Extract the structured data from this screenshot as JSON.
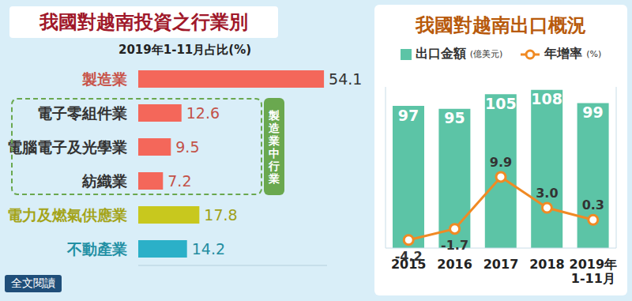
{
  "link_text": "全文閱讀",
  "chart_data": [
    {
      "type": "bar",
      "orientation": "horizontal",
      "title": "我國對越南投資之行業別",
      "subtitle": "2019年1-11月占比(%)",
      "categories": [
        "製造業",
        "電子零組件業",
        "電腦電子及光學業",
        "紡織業",
        "電力及燃氣供應業",
        "不動產業"
      ],
      "values": [
        54.1,
        12.6,
        9.5,
        7.2,
        17.8,
        14.2
      ],
      "colors": [
        "#f4675a",
        "#f4675a",
        "#f4675a",
        "#f4675a",
        "#c8c81e",
        "#2bb0c8"
      ],
      "xlim": [
        0,
        55
      ],
      "data_labels": true,
      "tick_labels": "y",
      "grid": false,
      "annotations": [
        {
          "text": "製造業中行業",
          "categories": [
            "電子零組件業",
            "電腦電子及光學業",
            "紡織業"
          ]
        }
      ]
    },
    {
      "type": "bar",
      "title": "我國對越南出口概況",
      "categories": [
        "2015",
        "2016",
        "2017",
        "2018",
        "2019年 1-11月"
      ],
      "series": [
        {
          "name": "出口金額(億美元)",
          "type": "bar",
          "color": "#5cc4a6",
          "values": [
            97,
            95,
            105,
            108,
            99
          ],
          "data_labels": true
        },
        {
          "name": "年增率(%)",
          "type": "line",
          "axis": "y2",
          "color": "#f08a24",
          "marker": "circle",
          "line_style": "solid",
          "values": [
            -4.2,
            -1.7,
            9.9,
            3.0,
            0.3
          ],
          "value_labels": [
            "-4.2",
            "-1.7",
            "9.9",
            "3.0",
            "0.3"
          ],
          "data_labels": true
        }
      ],
      "ylim": [
        0,
        110
      ],
      "y2lim": [
        -6,
        30
      ],
      "tick_labels": "x",
      "grid": false
    }
  ]
}
